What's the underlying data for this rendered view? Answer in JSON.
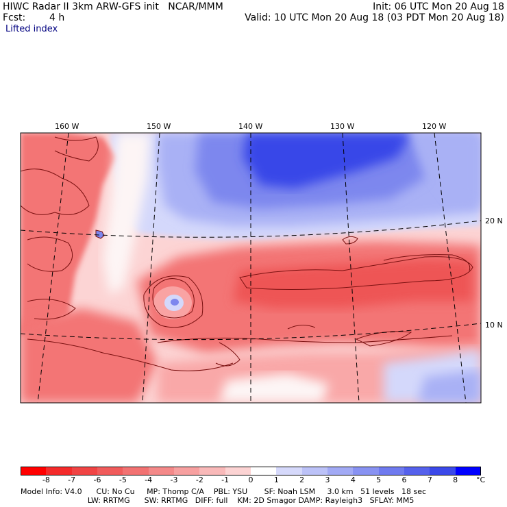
{
  "header": {
    "title": "HIWC Radar II 3km ARW-GFS init   NCAR/MMM",
    "init": "Init: 06 UTC Mon 20 Aug 18",
    "fcst_label": "Fcst:",
    "fcst_value": "4 h",
    "valid": "Valid: 10 UTC Mon 20 Aug 18 (03 PDT Mon 20 Aug 18)",
    "field": "Lifted index"
  },
  "map": {
    "lon_labels": [
      "160 W",
      "150 W",
      "140 W",
      "130 W",
      "120 W"
    ],
    "lat_labels": [
      "20 N",
      "10 N"
    ],
    "colors": {
      "deep_red": "#ee5555",
      "red": "#f37474",
      "light_red": "#f9a8a8",
      "pale_red": "#fcd4d4",
      "white": "#fdf5f5",
      "pale_blue": "#d4d8fb",
      "light_blue": "#a9b1f5",
      "blue": "#7d87ee",
      "deep_blue": "#3846e8",
      "coast": "#7a1010"
    }
  },
  "colorbar": {
    "unit": "°C",
    "ticks": [
      "-8",
      "-7",
      "-6",
      "-5",
      "-4",
      "-3",
      "-2",
      "-1",
      "0",
      "1",
      "2",
      "3",
      "4",
      "5",
      "6",
      "7",
      "8"
    ],
    "colors": [
      "#ff0000",
      "#f42b2b",
      "#f04444",
      "#f05b5b",
      "#f27272",
      "#f48989",
      "#f7a0a0",
      "#f9b9b9",
      "#fcd3d3",
      "#ffffff",
      "#d6d9fb",
      "#bcc2f8",
      "#a2aaf5",
      "#8892f2",
      "#6f7aef",
      "#5561ec",
      "#3b49e9",
      "#0000ff"
    ]
  },
  "footer": {
    "line1": "Model Info: V4.0      CU: No Cu     MP: Thomp C/A    PBL: YSU       SF: Noah LSM     3.0 km   51 levels   18 sec",
    "line2": "                            LW: RRTMG      SW: RRTMG   DIFF: full    KM: 2D Smagor DAMP: Rayleigh3   SFLAY: MM5"
  }
}
